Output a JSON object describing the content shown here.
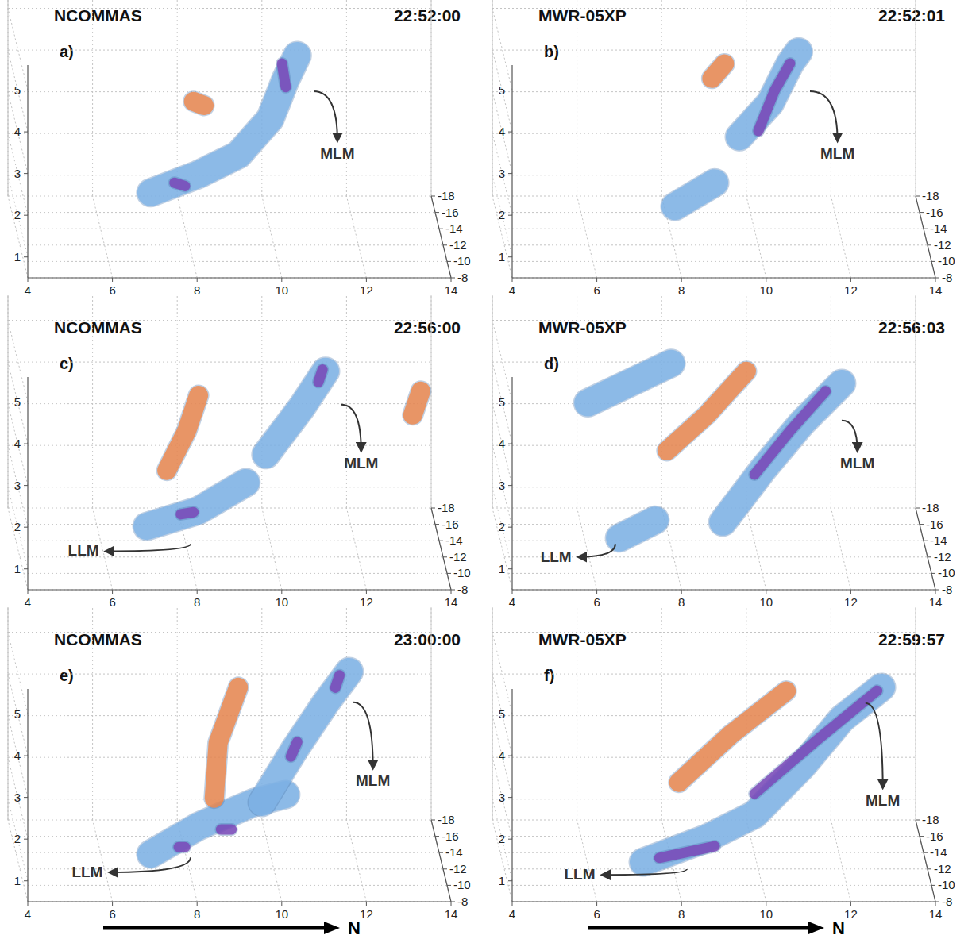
{
  "chart_data": [
    {
      "type": "isosurface3d",
      "title": "NCOMMAS",
      "time": "22:52:00",
      "panel": "a)",
      "xlim": [
        4,
        14
      ],
      "xticks": [
        4,
        6,
        8,
        10,
        12,
        14
      ],
      "ylim": [
        -8,
        -18
      ],
      "yticks": [
        -18,
        -16,
        -14,
        -12,
        -10,
        -8
      ],
      "zlim": [
        0.5,
        5.6
      ],
      "zticks": [
        1,
        2,
        3,
        4,
        5
      ],
      "grid": true,
      "surfaces": [
        {
          "color": "#80b4e8",
          "points": [
            [
              7.14,
              -13,
              1.56
            ],
            [
              8.27,
              -13,
              2.0
            ],
            [
              9.21,
              -13,
              2.47
            ],
            [
              9.96,
              -13,
              3.33
            ],
            [
              10.33,
              -13,
              4.28
            ],
            [
              10.6,
              -13,
              4.85
            ]
          ]
        },
        {
          "color": "#7b45b8",
          "points": [
            [
              7.7,
              -13,
              1.8
            ],
            [
              7.95,
              -13,
              1.72
            ]
          ]
        },
        {
          "color": "#7b45b8",
          "points": [
            [
              10.24,
              -13,
              4.66
            ],
            [
              10.33,
              -13,
              4.09
            ]
          ]
        },
        {
          "color": "#f0874a",
          "points": [
            [
              8.15,
              -13,
              3.75
            ],
            [
              8.4,
              -13,
              3.65
            ]
          ]
        }
      ],
      "annotations": [
        {
          "text": "MLM",
          "target": [
            10.99,
            -13,
            3.99
          ],
          "label_at": [
            11.55,
            -13,
            2.38
          ]
        }
      ]
    },
    {
      "type": "isosurface3d",
      "title": "MWR-05XP",
      "time": "22:52:01",
      "panel": "b)",
      "xlim": [
        4,
        14
      ],
      "xticks": [
        4,
        6,
        8,
        10,
        12,
        14
      ],
      "ylim": [
        -8,
        -18
      ],
      "yticks": [
        -18,
        -16,
        -14,
        -12,
        -10,
        -8
      ],
      "zlim": [
        0.5,
        5.6
      ],
      "zticks": [
        1,
        2,
        3,
        4,
        5
      ],
      "grid": true,
      "surfaces": [
        {
          "color": "#80b4e8",
          "points": [
            [
              8.08,
              -13,
              1.23
            ],
            [
              9.02,
              -13,
              1.8
            ]
          ]
        },
        {
          "color": "#80b4e8",
          "points": [
            [
              9.6,
              -13,
              2.9
            ],
            [
              10.33,
              -13,
              3.71
            ],
            [
              10.8,
              -13,
              4.66
            ],
            [
              11.0,
              -13,
              4.94
            ]
          ]
        },
        {
          "color": "#7b45b8",
          "points": [
            [
              10.05,
              -13,
              3.04
            ],
            [
              10.43,
              -13,
              4.0
            ],
            [
              10.8,
              -13,
              4.66
            ]
          ]
        },
        {
          "color": "#f0874a",
          "points": [
            [
              8.95,
              -13,
              4.3
            ],
            [
              9.25,
              -13,
              4.65
            ]
          ]
        }
      ],
      "annotations": [
        {
          "text": "MLM",
          "target": [
            11.27,
            -13,
            3.99
          ],
          "label_at": [
            11.92,
            -13,
            2.38
          ]
        }
      ]
    },
    {
      "type": "isosurface3d",
      "title": "NCOMMAS",
      "time": "22:56:00",
      "panel": "c)",
      "xlim": [
        4,
        14
      ],
      "xticks": [
        4,
        6,
        8,
        10,
        12,
        14
      ],
      "ylim": [
        -8,
        -18
      ],
      "yticks": [
        -18,
        -16,
        -14,
        -12,
        -10,
        -8
      ],
      "zlim": [
        0.5,
        5.6
      ],
      "zticks": [
        1,
        2,
        3,
        4,
        5
      ],
      "grid": true,
      "surfaces": [
        {
          "color": "#80b4e8",
          "points": [
            [
              7.05,
              -13,
              1.04
            ],
            [
              8.27,
              -13,
              1.42
            ],
            [
              9.39,
              -13,
              2.09
            ]
          ]
        },
        {
          "color": "#7b45b8",
          "points": [
            [
              7.85,
              -13,
              1.33
            ],
            [
              8.15,
              -13,
              1.38
            ]
          ]
        },
        {
          "color": "#80b4e8",
          "points": [
            [
              9.86,
              -13,
              2.76
            ],
            [
              10.71,
              -13,
              3.9
            ],
            [
              11.27,
              -13,
              4.76
            ]
          ]
        },
        {
          "color": "#7b45b8",
          "points": [
            [
              11.1,
              -13,
              4.5
            ],
            [
              11.2,
              -13,
              4.8
            ]
          ]
        },
        {
          "color": "#f0874a",
          "points": [
            [
              7.52,
              -13,
              2.38
            ],
            [
              7.99,
              -13,
              3.33
            ],
            [
              8.27,
              -13,
              4.18
            ]
          ]
        },
        {
          "color": "#f0874a",
          "points": [
            [
              13.33,
              -13,
              3.71
            ],
            [
              13.52,
              -13,
              4.28
            ]
          ]
        }
      ],
      "annotations": [
        {
          "text": "MLM",
          "target": [
            11.64,
            -13,
            3.96
          ],
          "label_at": [
            12.11,
            -13,
            2.43
          ]
        },
        {
          "text": "LLM",
          "target": [
            8.08,
            -13,
            0.62
          ],
          "label_at": [
            5.55,
            -13,
            0.33
          ]
        }
      ]
    },
    {
      "type": "isosurface3d",
      "title": "MWR-05XP",
      "time": "22:56:03",
      "panel": "d)",
      "xlim": [
        4,
        14
      ],
      "xticks": [
        4,
        6,
        8,
        10,
        12,
        14
      ],
      "ylim": [
        -8,
        -18
      ],
      "yticks": [
        -18,
        -16,
        -14,
        -12,
        -10,
        -8
      ],
      "zlim": [
        0.5,
        5.6
      ],
      "zticks": [
        1,
        2,
        3,
        4,
        5
      ],
      "grid": true,
      "surfaces": [
        {
          "color": "#80b4e8",
          "points": [
            [
              6.02,
              -13,
              4.0
            ],
            [
              7.99,
              -13,
              4.95
            ]
          ]
        },
        {
          "color": "#f0874a",
          "points": [
            [
              7.89,
              -13,
              2.85
            ],
            [
              8.83,
              -13,
              3.71
            ],
            [
              9.77,
              -13,
              4.76
            ]
          ]
        },
        {
          "color": "#80b4e8",
          "points": [
            [
              6.77,
              -13,
              0.76
            ],
            [
              7.61,
              -13,
              1.19
            ]
          ]
        },
        {
          "color": "#80b4e8",
          "points": [
            [
              9.21,
              -13,
              1.14
            ],
            [
              10.14,
              -13,
              2.38
            ],
            [
              11.08,
              -13,
              3.52
            ],
            [
              12.02,
              -13,
              4.47
            ]
          ]
        },
        {
          "color": "#7b45b8",
          "points": [
            [
              9.96,
              -13,
              2.28
            ],
            [
              10.8,
              -13,
              3.33
            ],
            [
              11.64,
              -13,
              4.28
            ]
          ]
        }
      ],
      "annotations": [
        {
          "text": "MLM",
          "target": [
            12.02,
            -13,
            3.58
          ],
          "label_at": [
            12.39,
            -13,
            2.43
          ]
        },
        {
          "text": "LLM",
          "target": [
            6.67,
            -13,
            0.62
          ],
          "label_at": [
            5.27,
            -13,
            0.19
          ]
        }
      ]
    },
    {
      "type": "isosurface3d",
      "title": "NCOMMAS",
      "time": "23:00:00",
      "panel": "e)",
      "xlim": [
        4,
        14
      ],
      "xticks": [
        4,
        6,
        8,
        10,
        12,
        14
      ],
      "ylim": [
        -8,
        -18
      ],
      "yticks": [
        -18,
        -16,
        -14,
        -12,
        -10,
        -8
      ],
      "zlim": [
        0.5,
        5.6
      ],
      "zticks": [
        1,
        2,
        3,
        4,
        5
      ],
      "grid": true,
      "x_direction_label": "N",
      "surfaces": [
        {
          "color": "#80b4e8",
          "points": [
            [
              7.14,
              -13,
              0.66
            ],
            [
              8.27,
              -13,
              1.33
            ],
            [
              9.58,
              -13,
              1.9
            ],
            [
              10.33,
              -13,
              2.09
            ]
          ]
        },
        {
          "color": "#7b45b8",
          "points": [
            [
              8.8,
              -13,
              1.25
            ],
            [
              9.05,
              -13,
              1.25
            ]
          ]
        },
        {
          "color": "#7b45b8",
          "points": [
            [
              7.8,
              -13,
              0.83
            ],
            [
              7.95,
              -13,
              0.83
            ]
          ]
        },
        {
          "color": "#80b4e8",
          "points": [
            [
              9.77,
              -13,
              1.9
            ],
            [
              10.52,
              -13,
              3.14
            ],
            [
              11.27,
              -13,
              4.28
            ],
            [
              11.83,
              -13,
              5.04
            ]
          ]
        },
        {
          "color": "#7b45b8",
          "points": [
            [
              10.45,
              -13,
              3.0
            ],
            [
              10.6,
              -13,
              3.35
            ]
          ]
        },
        {
          "color": "#7b45b8",
          "points": [
            [
              11.5,
              -13,
              4.65
            ],
            [
              11.6,
              -13,
              4.95
            ]
          ]
        },
        {
          "color": "#f0874a",
          "points": [
            [
              8.64,
              -13,
              2.0
            ],
            [
              8.73,
              -13,
              3.33
            ],
            [
              9.21,
              -13,
              4.66
            ]
          ]
        }
      ],
      "annotations": [
        {
          "text": "MLM",
          "target": [
            11.92,
            -13,
            4.3
          ],
          "label_at": [
            12.39,
            -13,
            2.3
          ]
        },
        {
          "text": "LLM",
          "target": [
            8.08,
            -13,
            0.58
          ],
          "label_at": [
            5.64,
            -13,
            0.11
          ]
        }
      ]
    },
    {
      "type": "isosurface3d",
      "title": "MWR-05XP",
      "time": "22:59:57",
      "panel": "f)",
      "xlim": [
        4,
        14
      ],
      "xticks": [
        4,
        6,
        8,
        10,
        12,
        14
      ],
      "ylim": [
        -8,
        -18
      ],
      "yticks": [
        -18,
        -16,
        -14,
        -12,
        -10,
        -8
      ],
      "zlim": [
        0.5,
        5.6
      ],
      "zticks": [
        1,
        2,
        3,
        4,
        5
      ],
      "grid": true,
      "x_direction_label": "N",
      "surfaces": [
        {
          "color": "#80b4e8",
          "points": [
            [
              7.33,
              -13,
              0.47
            ],
            [
              8.83,
              -13,
              1.04
            ],
            [
              9.96,
              -13,
              1.61
            ],
            [
              11.08,
              -13,
              2.76
            ],
            [
              12.02,
              -13,
              3.9
            ],
            [
              12.96,
              -13,
              4.66
            ]
          ]
        },
        {
          "color": "#7b45b8",
          "points": [
            [
              7.71,
              -13,
              0.57
            ],
            [
              9.02,
              -13,
              0.85
            ]
          ]
        },
        {
          "color": "#7b45b8",
          "points": [
            [
              9.96,
              -13,
              2.11
            ],
            [
              11.36,
              -13,
              3.33
            ],
            [
              12.86,
              -13,
              4.58
            ]
          ]
        },
        {
          "color": "#f0874a",
          "points": [
            [
              8.17,
              -13,
              2.38
            ],
            [
              9.39,
              -13,
              3.52
            ],
            [
              10.71,
              -13,
              4.57
            ]
          ]
        }
      ],
      "annotations": [
        {
          "text": "MLM",
          "target": [
            12.58,
            -13,
            4.28
          ],
          "label_at": [
            12.99,
            -13,
            1.83
          ]
        },
        {
          "text": "LLM",
          "target": [
            8.36,
            -13,
            0.3
          ],
          "label_at": [
            5.83,
            -13,
            0.05
          ]
        }
      ]
    }
  ]
}
